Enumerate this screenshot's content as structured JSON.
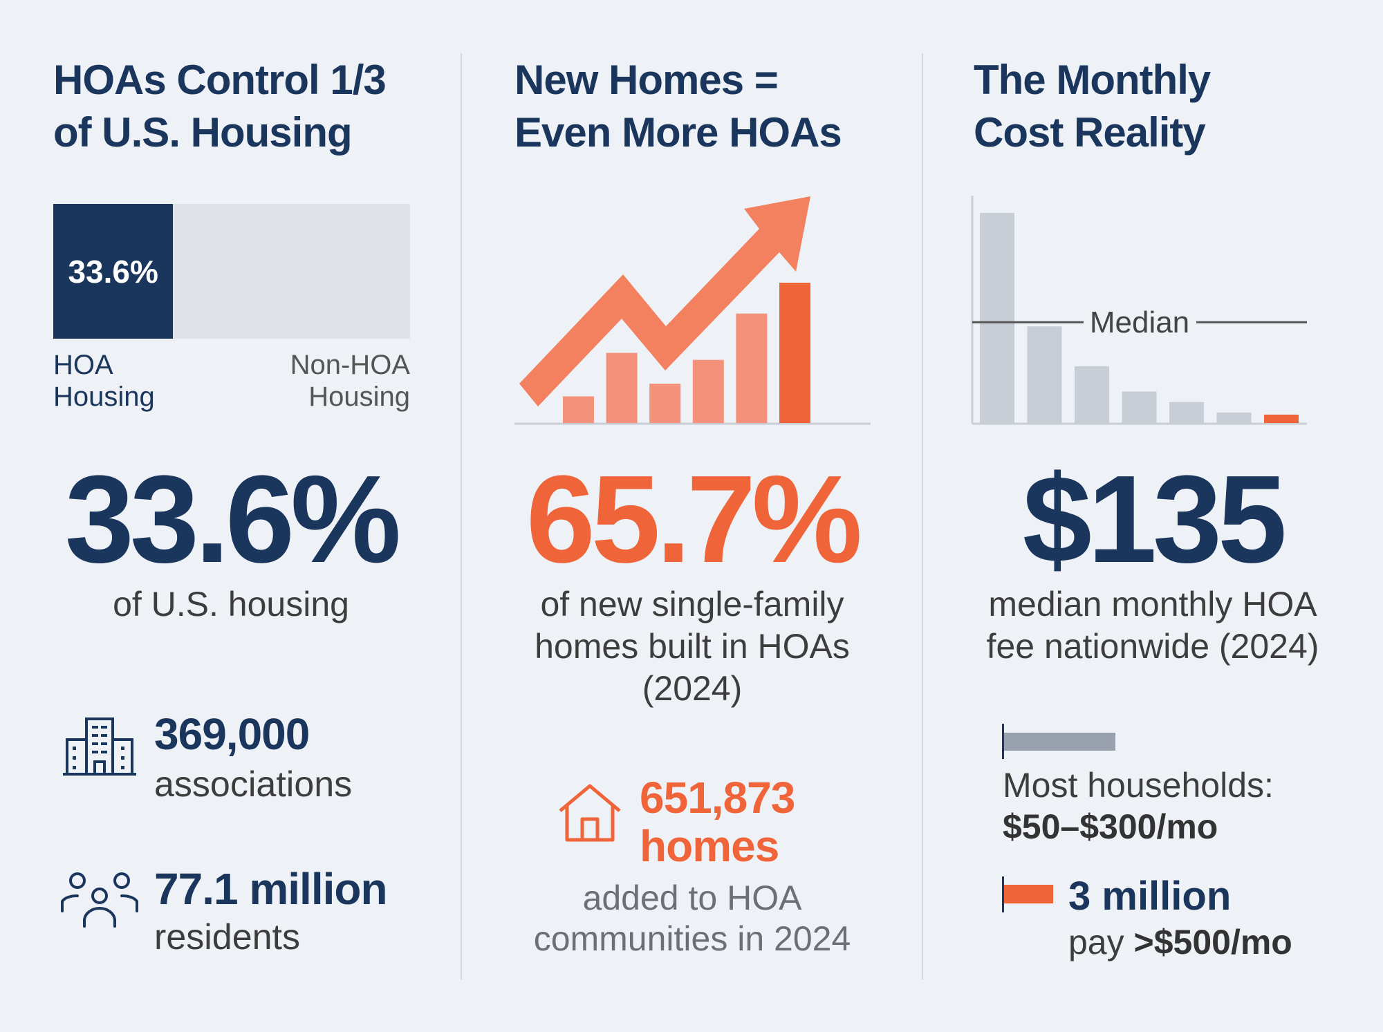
{
  "colors": {
    "navy": "#1b365d",
    "orange": "#ef6438",
    "light_orange": "#f4917a",
    "arrow": "#f3805f",
    "gray_bar": "#c8ced6",
    "background": "#eef1f5"
  },
  "col1": {
    "title_line1": "HOAs Control 1/3",
    "title_line2": "of U.S. Housing",
    "bar_label": "33.6%",
    "legend_hoa_1": "HOA",
    "legend_hoa_2": "Housing",
    "legend_non_1": "Non-HOA",
    "legend_non_2": "Housing",
    "big_value": "33.6%",
    "big_caption": "of U.S. housing",
    "stat1_value": "369,000",
    "stat1_label": "associations",
    "stat1_icon": "building-icon",
    "stat2_value": "77.1 million",
    "stat2_label": "residents",
    "stat2_icon": "people-icon"
  },
  "col2": {
    "title_line1": "New Homes =",
    "title_line2": "Even More HOAs",
    "big_value": "65.7%",
    "caption_1": "of new single-family",
    "caption_2": "homes built in HOAs",
    "caption_3": "(2024)",
    "homes_icon": "house-icon",
    "homes_value": "651,873",
    "homes_unit": "homes",
    "homes_caption_1": "added to HOA",
    "homes_caption_2": "communities in 2024"
  },
  "col3": {
    "title_line1": "The Monthly",
    "title_line2": "Cost Reality",
    "median_label": "Median",
    "big_value": "$135",
    "caption_1": "median monthly HOA",
    "caption_2": "fee nationwide (2024)",
    "legend1_label": "Most households:",
    "legend1_value": "$50–$300/mo",
    "legend2_value": "3 million",
    "legend2_prefix": "pay",
    "legend2_amount": ">$500/mo"
  },
  "chart_data": [
    {
      "type": "bar",
      "orientation": "horizontal-stacked",
      "series": [
        {
          "name": "HOA Housing",
          "values": [
            33.6
          ]
        },
        {
          "name": "Non-HOA Housing",
          "values": [
            66.4
          ]
        }
      ],
      "ylim": [
        0,
        100
      ]
    },
    {
      "type": "bar",
      "values": [
        19,
        50,
        28,
        45,
        78,
        100
      ],
      "highlight_last": true,
      "trend_arrow": "up"
    },
    {
      "type": "bar",
      "values": [
        100,
        46,
        27,
        15,
        10,
        5,
        4
      ],
      "highlight_last": true,
      "reference_line": {
        "label": "Median",
        "value": 48
      }
    }
  ]
}
